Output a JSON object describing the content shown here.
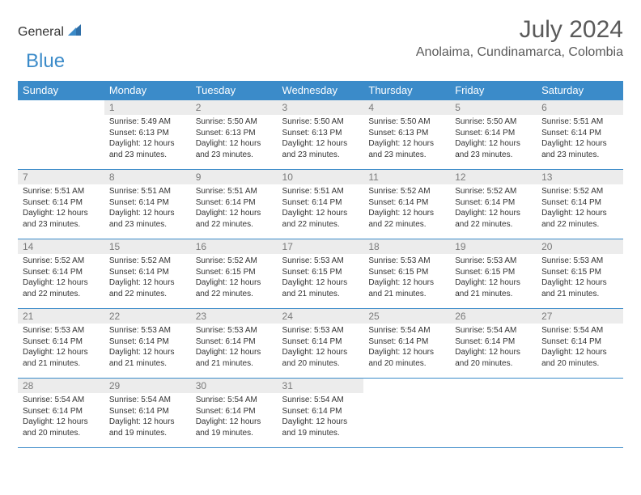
{
  "brand": {
    "general": "General",
    "blue": "Blue"
  },
  "title": "July 2024",
  "location": "Anolaima, Cundinamarca, Colombia",
  "colors": {
    "accent": "#3b8bc9",
    "day_header_bg": "#ececec",
    "text": "#333333",
    "muted": "#7a7a7a",
    "title": "#5a5a5a"
  },
  "weekdays": [
    "Sunday",
    "Monday",
    "Tuesday",
    "Wednesday",
    "Thursday",
    "Friday",
    "Saturday"
  ],
  "weeks": [
    [
      null,
      {
        "n": "1",
        "sr": "5:49 AM",
        "ss": "6:13 PM",
        "dl": "12 hours and 23 minutes."
      },
      {
        "n": "2",
        "sr": "5:50 AM",
        "ss": "6:13 PM",
        "dl": "12 hours and 23 minutes."
      },
      {
        "n": "3",
        "sr": "5:50 AM",
        "ss": "6:13 PM",
        "dl": "12 hours and 23 minutes."
      },
      {
        "n": "4",
        "sr": "5:50 AM",
        "ss": "6:13 PM",
        "dl": "12 hours and 23 minutes."
      },
      {
        "n": "5",
        "sr": "5:50 AM",
        "ss": "6:14 PM",
        "dl": "12 hours and 23 minutes."
      },
      {
        "n": "6",
        "sr": "5:51 AM",
        "ss": "6:14 PM",
        "dl": "12 hours and 23 minutes."
      }
    ],
    [
      {
        "n": "7",
        "sr": "5:51 AM",
        "ss": "6:14 PM",
        "dl": "12 hours and 23 minutes."
      },
      {
        "n": "8",
        "sr": "5:51 AM",
        "ss": "6:14 PM",
        "dl": "12 hours and 23 minutes."
      },
      {
        "n": "9",
        "sr": "5:51 AM",
        "ss": "6:14 PM",
        "dl": "12 hours and 22 minutes."
      },
      {
        "n": "10",
        "sr": "5:51 AM",
        "ss": "6:14 PM",
        "dl": "12 hours and 22 minutes."
      },
      {
        "n": "11",
        "sr": "5:52 AM",
        "ss": "6:14 PM",
        "dl": "12 hours and 22 minutes."
      },
      {
        "n": "12",
        "sr": "5:52 AM",
        "ss": "6:14 PM",
        "dl": "12 hours and 22 minutes."
      },
      {
        "n": "13",
        "sr": "5:52 AM",
        "ss": "6:14 PM",
        "dl": "12 hours and 22 minutes."
      }
    ],
    [
      {
        "n": "14",
        "sr": "5:52 AM",
        "ss": "6:14 PM",
        "dl": "12 hours and 22 minutes."
      },
      {
        "n": "15",
        "sr": "5:52 AM",
        "ss": "6:14 PM",
        "dl": "12 hours and 22 minutes."
      },
      {
        "n": "16",
        "sr": "5:52 AM",
        "ss": "6:15 PM",
        "dl": "12 hours and 22 minutes."
      },
      {
        "n": "17",
        "sr": "5:53 AM",
        "ss": "6:15 PM",
        "dl": "12 hours and 21 minutes."
      },
      {
        "n": "18",
        "sr": "5:53 AM",
        "ss": "6:15 PM",
        "dl": "12 hours and 21 minutes."
      },
      {
        "n": "19",
        "sr": "5:53 AM",
        "ss": "6:15 PM",
        "dl": "12 hours and 21 minutes."
      },
      {
        "n": "20",
        "sr": "5:53 AM",
        "ss": "6:15 PM",
        "dl": "12 hours and 21 minutes."
      }
    ],
    [
      {
        "n": "21",
        "sr": "5:53 AM",
        "ss": "6:14 PM",
        "dl": "12 hours and 21 minutes."
      },
      {
        "n": "22",
        "sr": "5:53 AM",
        "ss": "6:14 PM",
        "dl": "12 hours and 21 minutes."
      },
      {
        "n": "23",
        "sr": "5:53 AM",
        "ss": "6:14 PM",
        "dl": "12 hours and 21 minutes."
      },
      {
        "n": "24",
        "sr": "5:53 AM",
        "ss": "6:14 PM",
        "dl": "12 hours and 20 minutes."
      },
      {
        "n": "25",
        "sr": "5:54 AM",
        "ss": "6:14 PM",
        "dl": "12 hours and 20 minutes."
      },
      {
        "n": "26",
        "sr": "5:54 AM",
        "ss": "6:14 PM",
        "dl": "12 hours and 20 minutes."
      },
      {
        "n": "27",
        "sr": "5:54 AM",
        "ss": "6:14 PM",
        "dl": "12 hours and 20 minutes."
      }
    ],
    [
      {
        "n": "28",
        "sr": "5:54 AM",
        "ss": "6:14 PM",
        "dl": "12 hours and 20 minutes."
      },
      {
        "n": "29",
        "sr": "5:54 AM",
        "ss": "6:14 PM",
        "dl": "12 hours and 19 minutes."
      },
      {
        "n": "30",
        "sr": "5:54 AM",
        "ss": "6:14 PM",
        "dl": "12 hours and 19 minutes."
      },
      {
        "n": "31",
        "sr": "5:54 AM",
        "ss": "6:14 PM",
        "dl": "12 hours and 19 minutes."
      },
      null,
      null,
      null
    ]
  ],
  "labels": {
    "sunrise": "Sunrise:",
    "sunset": "Sunset:",
    "daylight": "Daylight:"
  }
}
